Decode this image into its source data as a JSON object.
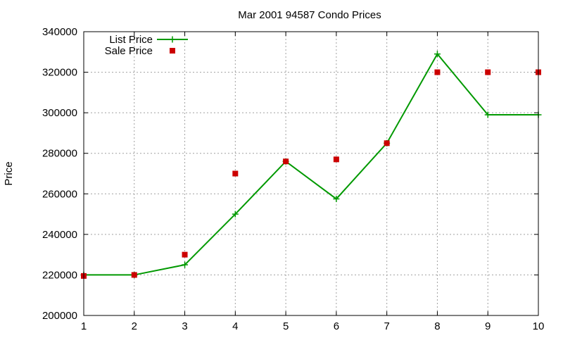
{
  "chart_data": {
    "type": "line",
    "title": "Mar 2001 94587 Condo Prices",
    "xlabel": "",
    "ylabel": "Price",
    "xlim": [
      1,
      10
    ],
    "ylim": [
      200000,
      340000
    ],
    "x_ticks": [
      1,
      2,
      3,
      4,
      5,
      6,
      7,
      8,
      9,
      10
    ],
    "y_ticks": [
      200000,
      220000,
      240000,
      260000,
      280000,
      300000,
      320000,
      340000
    ],
    "grid": true,
    "legend_position": "top-left",
    "series": [
      {
        "name": "List Price",
        "style": "line-with-plus-markers",
        "color": "#009900",
        "x": [
          1,
          2,
          3,
          4,
          5,
          6,
          7,
          8,
          9,
          10
        ],
        "values": [
          220000,
          220000,
          225000,
          250000,
          276000,
          257500,
          285000,
          329000,
          299000,
          299000
        ]
      },
      {
        "name": "Sale Price",
        "style": "square-markers",
        "color": "#cc0000",
        "x": [
          1,
          2,
          3,
          4,
          5,
          6,
          7,
          8,
          9,
          10
        ],
        "values": [
          219500,
          220000,
          230000,
          270000,
          276000,
          277000,
          285000,
          320000,
          320000,
          320000
        ]
      }
    ]
  }
}
